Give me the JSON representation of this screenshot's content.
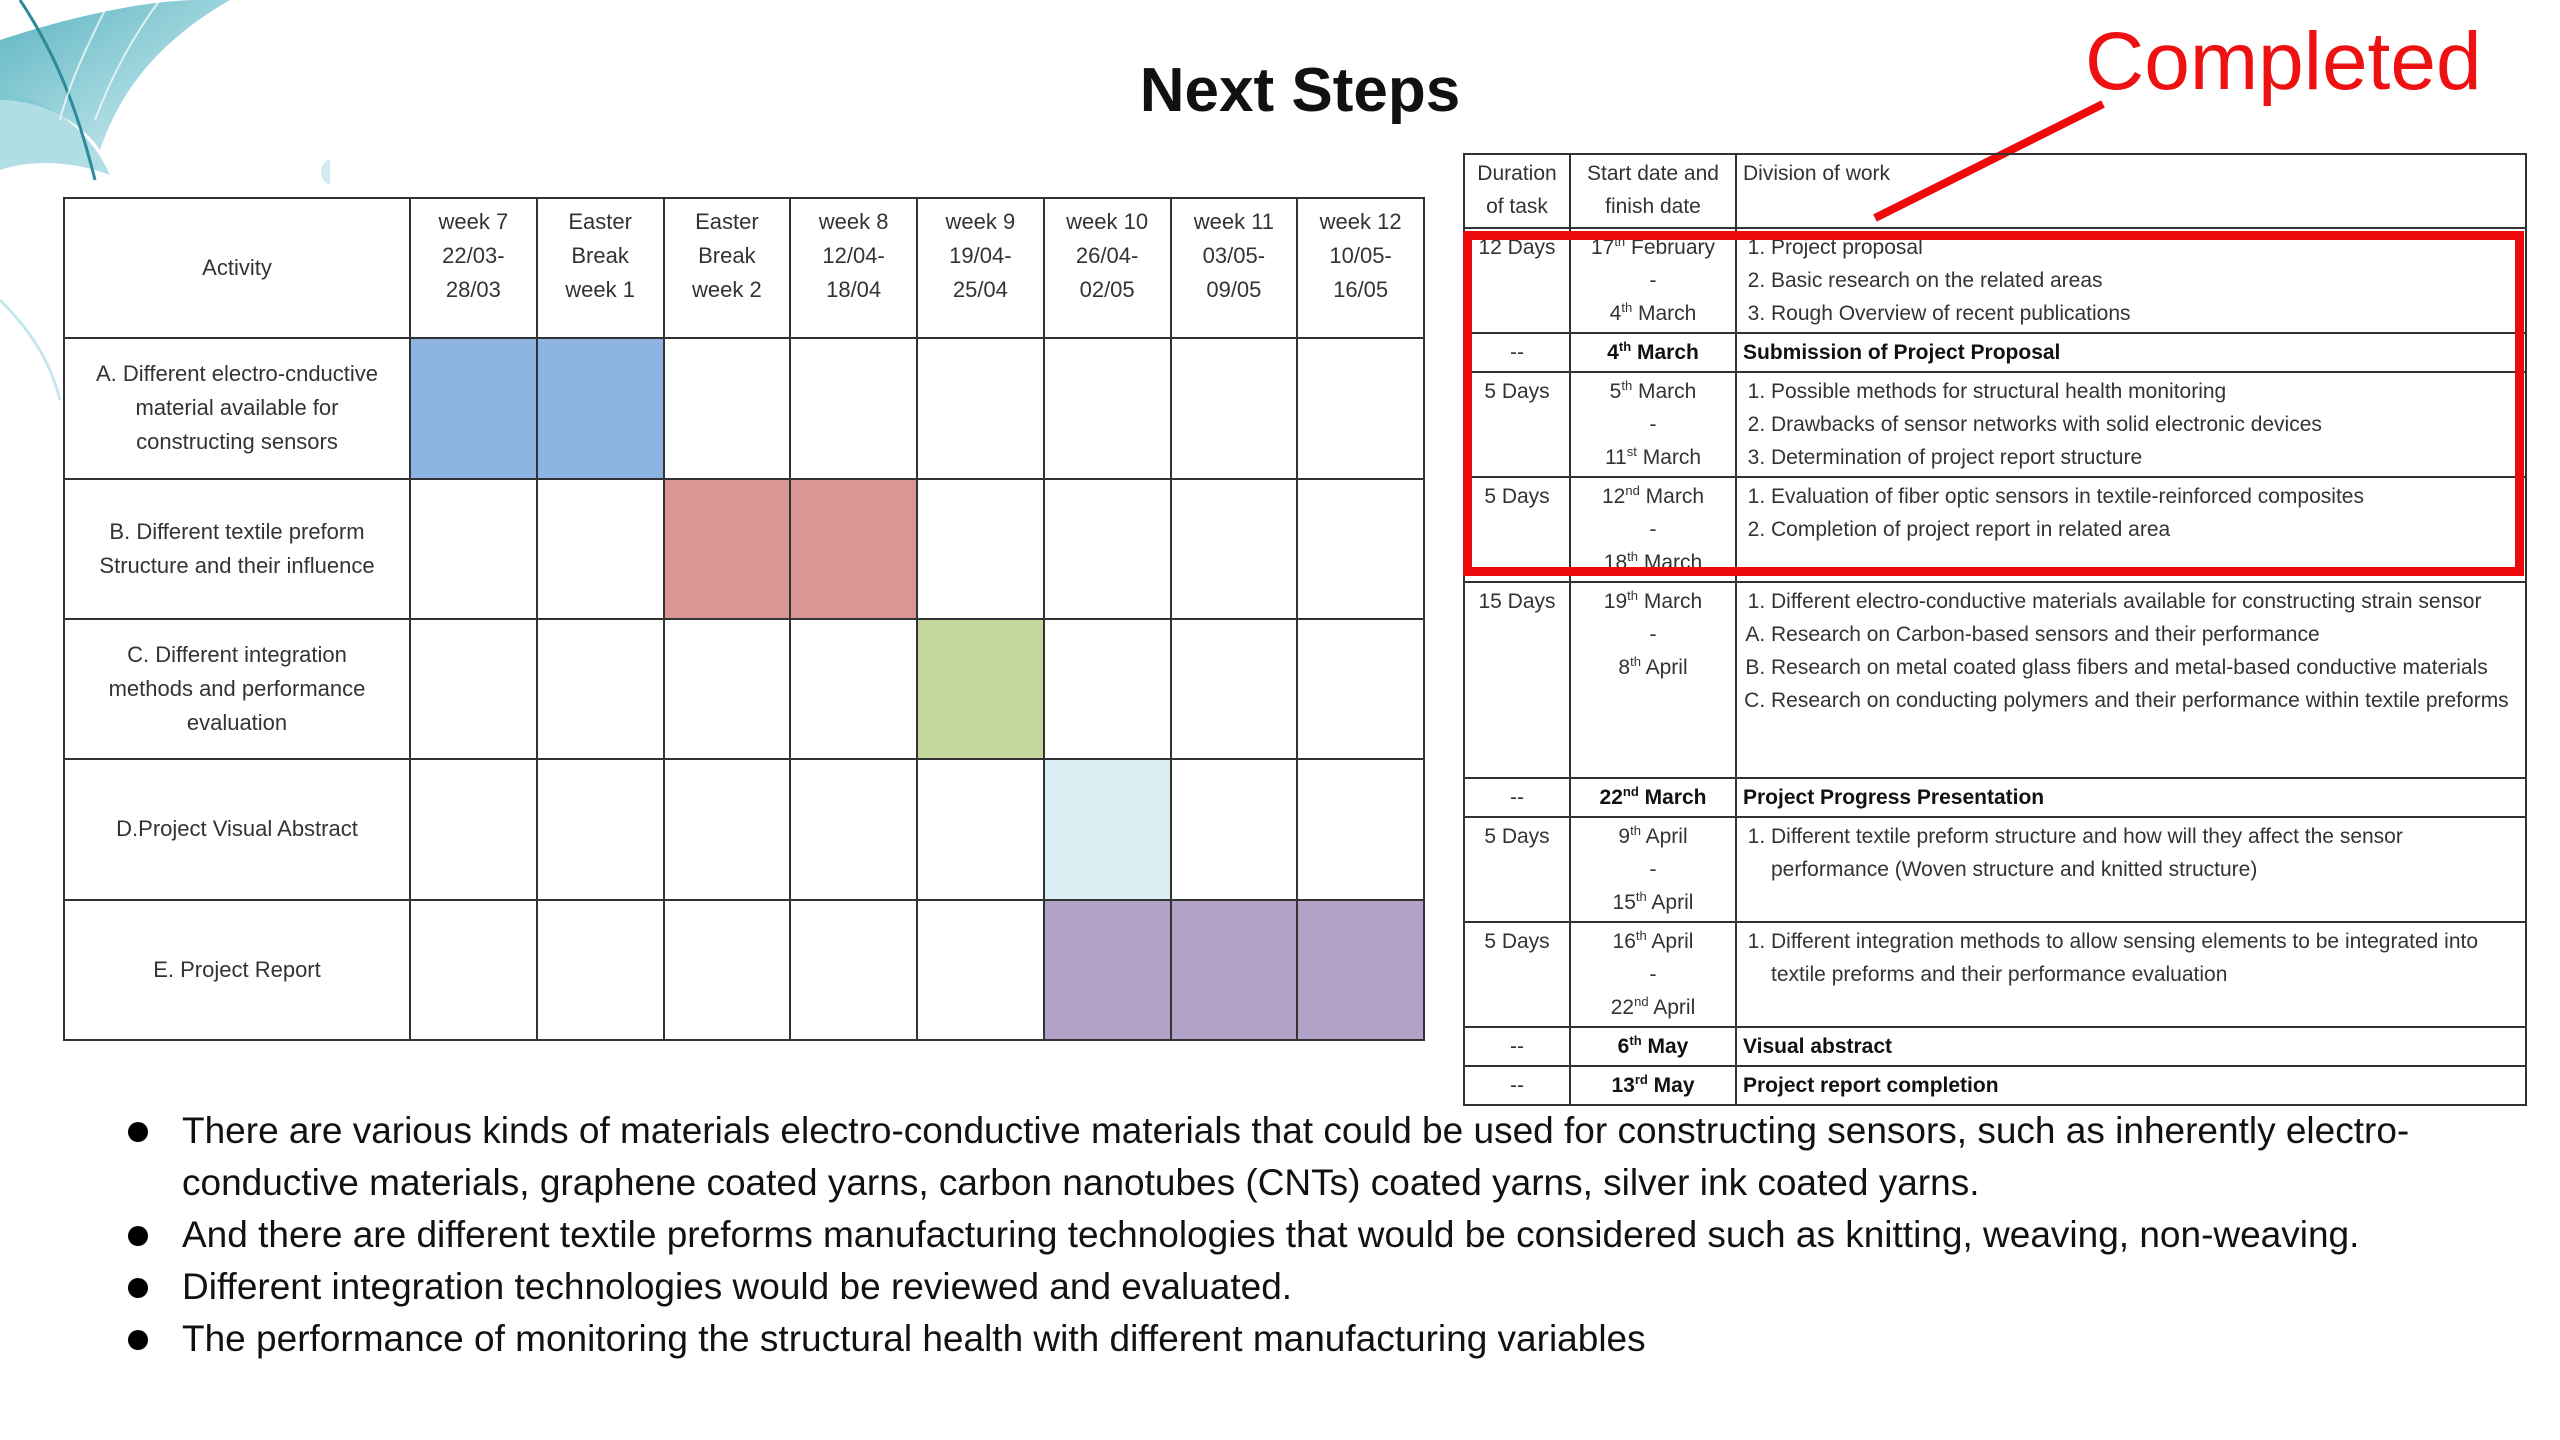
{
  "title": "Next Steps",
  "annotation": "Completed",
  "colors": {
    "annotation": "#ee1111",
    "blue": "#8eb4e3",
    "red": "#da9694",
    "green": "#c3d69b",
    "light_blue": "#dbeef4",
    "purple": "#b3a2c7"
  },
  "gantt": {
    "header": {
      "activity": "Activity",
      "weeks": [
        [
          "week 7",
          "22/03-",
          "28/03"
        ],
        [
          "Easter",
          "Break",
          "week 1"
        ],
        [
          "Easter",
          "Break",
          "week 2"
        ],
        [
          "week 8",
          "12/04-",
          "18/04"
        ],
        [
          "week 9",
          "19/04-",
          "25/04"
        ],
        [
          "week 10",
          "26/04-",
          "02/05"
        ],
        [
          "week 11",
          "03/05-",
          "09/05"
        ],
        [
          "week 12",
          "10/05-",
          "16/05"
        ]
      ]
    },
    "rows": [
      {
        "label": [
          "A. Different electro-cnductive",
          "material available for",
          "constructing sensors"
        ],
        "active_weeks": [
          "week 7",
          "Easter Break week 1"
        ],
        "color": "blue"
      },
      {
        "label": [
          "B. Different textile preform",
          "Structure and their influence"
        ],
        "active_weeks": [
          "Easter Break week 2",
          "week 8"
        ],
        "color": "red"
      },
      {
        "label": [
          "C. Different integration",
          "methods and performance",
          "evaluation"
        ],
        "active_weeks": [
          "week 9"
        ],
        "color": "green"
      },
      {
        "label": [
          "D.Project Visual Abstract"
        ],
        "active_weeks": [
          "week 10"
        ],
        "color": "light_blue"
      },
      {
        "label": [
          "E. Project Report"
        ],
        "active_weeks": [
          "week 10",
          "week 11",
          "week 12"
        ],
        "color": "purple"
      }
    ]
  },
  "schedule": {
    "headers": {
      "duration": [
        "Duration",
        "of task"
      ],
      "dates": [
        "Start date and",
        "finish date"
      ],
      "work": "Division of work"
    },
    "rows": {
      "r1": {
        "dur": "12 Days",
        "start": [
          "17",
          "th",
          " February"
        ],
        "sep": "-",
        "end": [
          "4",
          "th",
          " March"
        ],
        "items": [
          "Project proposal",
          "Basic research on the related areas",
          "Rough Overview of recent publications"
        ]
      },
      "r2": {
        "dur": "--",
        "date": [
          "4",
          "th",
          " March"
        ],
        "work": "Submission of Project Proposal"
      },
      "r3": {
        "dur": "5 Days",
        "start": [
          "5",
          "th",
          " March"
        ],
        "sep": "-",
        "end": [
          "11",
          "st",
          " March"
        ],
        "items": [
          "Possible methods for structural health monitoring",
          "Drawbacks of sensor networks with solid electronic devices",
          "Determination of project report structure"
        ]
      },
      "r4": {
        "dur": "5 Days",
        "start": [
          "12",
          "nd",
          " March"
        ],
        "sep": "-",
        "end": [
          "18",
          "th",
          " March"
        ],
        "items": [
          "Evaluation of fiber optic sensors in textile-reinforced composites",
          "Completion of project report in related area"
        ]
      },
      "r5": {
        "dur": "15 Days",
        "start": [
          "19",
          "th",
          " March"
        ],
        "sep": "-",
        "end": [
          "8",
          "th",
          " April"
        ],
        "items": [
          "Different electro-conductive materials available for constructing strain sensor"
        ],
        "sub": [
          "Research on Carbon-based sensors and their performance",
          "Research on metal coated glass fibers and metal-based conductive materials",
          "Research on conducting polymers and their performance within textile preforms"
        ]
      },
      "r6": {
        "dur": "--",
        "date": [
          "22",
          "nd",
          " March"
        ],
        "work": "Project Progress Presentation"
      },
      "r7": {
        "dur": "5 Days",
        "start": [
          "9",
          "th",
          " April"
        ],
        "sep": "-",
        "end": [
          "15",
          "th",
          " April"
        ],
        "items": [
          "Different textile preform structure and how will they affect the sensor performance (Woven structure and knitted structure)"
        ]
      },
      "r8": {
        "dur": "5 Days",
        "start": [
          "16",
          "th",
          " April"
        ],
        "sep": "-",
        "end": [
          "22",
          "nd",
          " April"
        ],
        "items": [
          "Different integration methods to allow sensing elements to be integrated into textile preforms and their performance evaluation"
        ]
      },
      "r9": {
        "dur": "--",
        "date": [
          "6",
          "th",
          " May"
        ],
        "work": "Visual abstract"
      },
      "r10": {
        "dur": "--",
        "date": [
          "13",
          "rd",
          " May"
        ],
        "work": "Project report completion"
      }
    }
  },
  "bullets": [
    "There are various kinds of materials electro-conductive materials that could be used for constructing sensors, such as inherently electro-conductive materials, graphene coated yarns, carbon nanotubes (CNTs) coated yarns, silver ink coated yarns.",
    "And there are different textile preforms manufacturing technologies that would be considered such as knitting, weaving, non-weaving.",
    "Different integration technologies would be reviewed and evaluated.",
    "The performance of monitoring the structural health with different manufacturing variables"
  ]
}
